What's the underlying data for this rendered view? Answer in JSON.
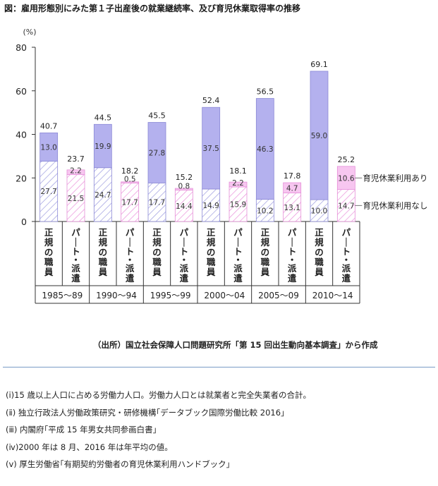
{
  "title": "図：雇用形態別にみた第１子出産後の就業継続率、及び育児休業取得率の推移",
  "source": "（出所）国立社会保障人口問題研究所「第 15 回出生動向基本調査」から作成",
  "notes": [
    "(ⅰ)15 歳以上人口に占める労働力人口。労働力人口とは就業者と完全失業者の合計。",
    "(ⅱ) 独立行政法人労働政策研究・研修機構｢データブック国際労働比較 2016｣",
    "(ⅲ) 内閣府｢平成 15 年男女共同参画白書｣",
    "(ⅳ)2000 年は 8 月、2016 年は年平均の値。",
    "(ⅴ) 厚生労働省｢有期契約労働者の育児休業利用ハンドブック｣"
  ],
  "colors": {
    "seishain_with": "#b4b1ee",
    "seishain_without_stripe": "#9d9ce0",
    "haken_with": "#f7c6f0",
    "haken_without_stripe": "#ea8fdb",
    "border_seishain": "#8b89d6",
    "border_haken": "#e58ed8"
  },
  "chart_data": {
    "type": "bar",
    "stacked": true,
    "y_unit": "(%)",
    "ylim": [
      0,
      80
    ],
    "yticks": [
      0,
      20,
      40,
      60,
      80
    ],
    "grid": false,
    "groups": [
      "1985～89",
      "1990～94",
      "1995～99",
      "2000～04",
      "2005～09",
      "2010～14"
    ],
    "categories": [
      "正規の職員",
      "パート・派遣"
    ],
    "series": [
      {
        "name": "育児休業利用なし",
        "values": {
          "正規の職員": [
            27.7,
            24.7,
            17.7,
            14.9,
            10.2,
            10.0
          ],
          "パート・派遣": [
            21.5,
            17.7,
            14.4,
            15.9,
            13.1,
            14.7
          ]
        }
      },
      {
        "name": "育児休業利用あり",
        "values": {
          "正規の職員": [
            13.0,
            19.9,
            27.8,
            37.5,
            46.3,
            59.0
          ],
          "パート・派遣": [
            2.2,
            0.5,
            0.8,
            2.2,
            4.7,
            10.6
          ]
        }
      }
    ],
    "totals": {
      "正規の職員": [
        40.7,
        44.5,
        45.5,
        52.4,
        56.5,
        69.1
      ],
      "パート・派遣": [
        23.7,
        18.2,
        15.2,
        18.1,
        17.8,
        25.2
      ]
    },
    "legend_placement": "right, beside last bar"
  }
}
